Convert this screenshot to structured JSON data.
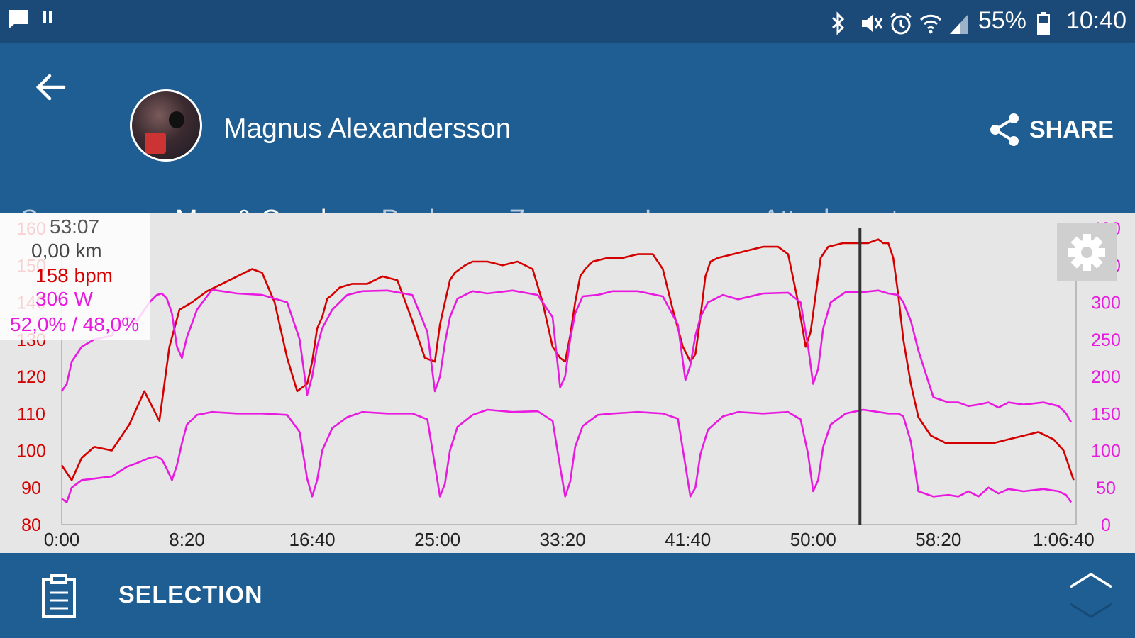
{
  "status_bar": {
    "battery": "55%",
    "time": "10:40",
    "icons": [
      "chat-icon",
      "pause-icon",
      "bluetooth-icon",
      "mute-icon",
      "alarm-icon",
      "wifi-icon",
      "signal-icon",
      "battery-icon"
    ]
  },
  "header": {
    "user_name": "Magnus Alexandersson",
    "share_label": "SHARE"
  },
  "tabs": [
    {
      "label": "Summary",
      "active": false
    },
    {
      "label": "Map & Graph",
      "active": true
    },
    {
      "label": "Peaks",
      "active": false
    },
    {
      "label": "Zones",
      "active": false
    },
    {
      "label": "Laps",
      "active": false
    },
    {
      "label": "Attachments",
      "active": false
    }
  ],
  "cursor_info": {
    "time": "53:07",
    "distance": "0,00 km",
    "heart_rate": "158 bpm",
    "power": "306 W",
    "balance": "52,0% / 48,0%"
  },
  "chart_data": {
    "type": "line",
    "x_ticks": [
      "0:00",
      "8:20",
      "16:40",
      "25:00",
      "33:20",
      "41:40",
      "50:00",
      "58:20",
      "1:06:40"
    ],
    "x_tick_seconds": [
      0,
      500,
      1000,
      1500,
      2000,
      2500,
      3000,
      3500,
      4000
    ],
    "x_range_seconds": [
      0,
      4050
    ],
    "cursor_seconds": 3187,
    "y_left": {
      "range": [
        80,
        160
      ],
      "ticks": [
        80,
        90,
        100,
        110,
        120,
        130,
        140,
        150,
        160
      ],
      "color": "#d40000"
    },
    "y_right": {
      "range": [
        0,
        400
      ],
      "ticks": [
        0,
        50,
        100,
        150,
        200,
        250,
        300,
        350,
        400
      ],
      "color": "#e81ae0"
    },
    "series": [
      {
        "axis": "left",
        "color": "#d40000",
        "x": [
          0,
          40,
          80,
          130,
          200,
          270,
          330,
          390,
          430,
          470,
          520,
          580,
          640,
          700,
          760,
          800,
          850,
          900,
          940,
          980,
          1000,
          1020,
          1040,
          1060,
          1080,
          1110,
          1160,
          1220,
          1280,
          1340,
          1400,
          1450,
          1490,
          1510,
          1530,
          1550,
          1570,
          1590,
          1610,
          1640,
          1700,
          1760,
          1820,
          1880,
          1920,
          1960,
          1990,
          2010,
          2030,
          2050,
          2070,
          2090,
          2120,
          2180,
          2240,
          2300,
          2360,
          2400,
          2440,
          2480,
          2510,
          2530,
          2550,
          2570,
          2590,
          2620,
          2680,
          2740,
          2800,
          2860,
          2900,
          2940,
          2970,
          2990,
          3010,
          3030,
          3060,
          3120,
          3180,
          3220,
          3260,
          3280,
          3300,
          3320,
          3340,
          3360,
          3390,
          3420,
          3470,
          3530,
          3600,
          3660,
          3720,
          3780,
          3840,
          3900,
          3960,
          4000,
          4040
        ],
        "y": [
          96,
          92,
          98,
          101,
          100,
          107,
          116,
          108,
          128,
          138,
          140,
          143,
          145,
          147,
          149,
          148,
          140,
          125,
          116,
          118,
          124,
          133,
          136,
          141,
          142,
          144,
          145,
          145,
          147,
          146,
          135,
          125,
          124,
          134,
          140,
          146,
          148,
          149,
          150,
          151,
          151,
          150,
          151,
          149,
          140,
          128,
          125,
          124,
          131,
          140,
          147,
          149,
          151,
          152,
          152,
          153,
          153,
          149,
          138,
          128,
          124,
          126,
          136,
          147,
          151,
          152,
          153,
          154,
          155,
          155,
          153,
          140,
          128,
          132,
          142,
          152,
          155,
          156,
          156,
          156,
          157,
          156,
          156,
          152,
          142,
          130,
          118,
          109,
          104,
          102,
          102,
          102,
          102,
          103,
          104,
          105,
          103,
          100,
          92
        ]
      },
      {
        "axis": "right",
        "color": "#e81ae0",
        "x": [
          0,
          20,
          40,
          80,
          130,
          200,
          220,
          260,
          300,
          350,
          380,
          400,
          420,
          440,
          460,
          480,
          500,
          540,
          600,
          700,
          800,
          900,
          950,
          980,
          1000,
          1020,
          1040,
          1080,
          1140,
          1200,
          1300,
          1400,
          1460,
          1490,
          1510,
          1530,
          1550,
          1580,
          1640,
          1700,
          1800,
          1900,
          1960,
          1990,
          2010,
          2030,
          2050,
          2080,
          2140,
          2200,
          2300,
          2400,
          2460,
          2490,
          2510,
          2530,
          2550,
          2580,
          2640,
          2700,
          2800,
          2900,
          2950,
          2980,
          3000,
          3020,
          3040,
          3070,
          3130,
          3200,
          3260,
          3300,
          3340,
          3360,
          3390,
          3420,
          3480,
          3540,
          3580,
          3620,
          3660,
          3700,
          3740,
          3780,
          3840,
          3920,
          3980,
          4010,
          4030
        ],
        "y": [
          180,
          190,
          220,
          240,
          250,
          255,
          270,
          280,
          275,
          300,
          310,
          312,
          305,
          285,
          240,
          225,
          253,
          290,
          317,
          312,
          310,
          300,
          250,
          175,
          200,
          240,
          265,
          290,
          310,
          315,
          316,
          310,
          260,
          180,
          200,
          245,
          280,
          305,
          315,
          312,
          316,
          310,
          280,
          185,
          200,
          250,
          285,
          308,
          310,
          315,
          315,
          308,
          270,
          195,
          215,
          255,
          280,
          300,
          310,
          304,
          312,
          313,
          300,
          240,
          190,
          210,
          265,
          300,
          314,
          314,
          316,
          312,
          310,
          300,
          275,
          235,
          172,
          165,
          165,
          160,
          162,
          165,
          158,
          165,
          162,
          165,
          160,
          150,
          138
        ]
      },
      {
        "axis": "right",
        "color": "#e81ae0",
        "x": [
          0,
          20,
          40,
          80,
          130,
          200,
          260,
          300,
          350,
          380,
          400,
          420,
          440,
          460,
          480,
          500,
          540,
          600,
          700,
          800,
          900,
          950,
          980,
          1000,
          1020,
          1040,
          1080,
          1140,
          1200,
          1300,
          1400,
          1460,
          1490,
          1510,
          1530,
          1550,
          1580,
          1640,
          1700,
          1800,
          1900,
          1960,
          1990,
          2010,
          2030,
          2050,
          2080,
          2140,
          2200,
          2300,
          2400,
          2460,
          2490,
          2510,
          2530,
          2550,
          2580,
          2640,
          2700,
          2800,
          2900,
          2950,
          2980,
          3000,
          3020,
          3040,
          3070,
          3130,
          3200,
          3260,
          3300,
          3340,
          3360,
          3390,
          3420,
          3480,
          3540,
          3580,
          3620,
          3660,
          3700,
          3740,
          3780,
          3840,
          3920,
          3980,
          4010,
          4030
        ],
        "y": [
          35,
          30,
          50,
          60,
          62,
          65,
          78,
          83,
          90,
          92,
          88,
          75,
          60,
          80,
          110,
          135,
          148,
          152,
          150,
          150,
          148,
          125,
          62,
          38,
          60,
          100,
          130,
          145,
          152,
          150,
          150,
          142,
          80,
          38,
          55,
          100,
          132,
          148,
          155,
          152,
          153,
          140,
          78,
          38,
          58,
          105,
          133,
          148,
          150,
          152,
          150,
          143,
          80,
          38,
          50,
          95,
          128,
          146,
          152,
          150,
          152,
          142,
          95,
          45,
          60,
          105,
          135,
          150,
          155,
          152,
          150,
          150,
          146,
          112,
          45,
          38,
          40,
          38,
          45,
          38,
          50,
          42,
          48,
          45,
          48,
          45,
          40,
          30
        ]
      }
    ]
  },
  "bottom_bar": {
    "label": "SELECTION"
  }
}
